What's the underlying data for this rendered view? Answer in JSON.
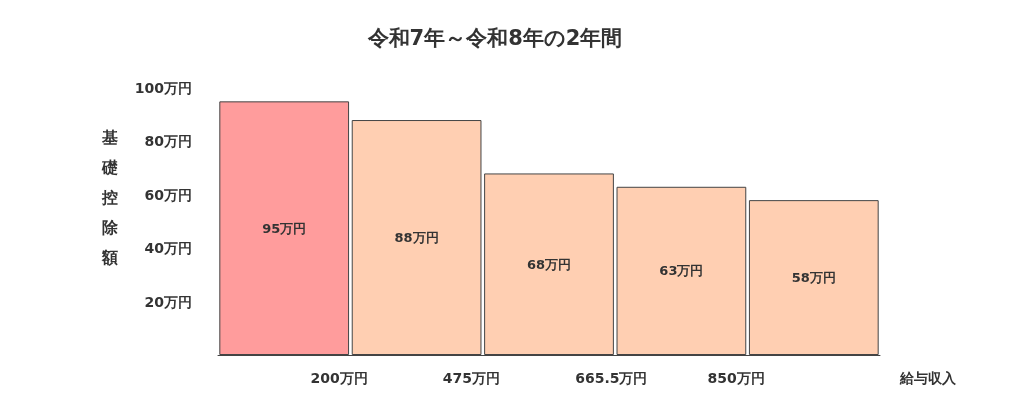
{
  "chart_data": {
    "type": "bar",
    "title": "令和7年～令和8年の2年間",
    "xlabel": "給与収入",
    "ylabel": "基礎控除額",
    "categories": [
      null,
      null,
      null,
      null,
      null
    ],
    "values": [
      95,
      88,
      68,
      63,
      58
    ],
    "colors": [
      "#ff9c9c",
      "#ffcfb2",
      "#ffcfb2",
      "#ffcfb2",
      "#ffcfb2"
    ],
    "value_labels": [
      "95万円",
      "88万円",
      "68万円",
      "63万円",
      "58万円"
    ],
    "ylim": [
      0,
      100
    ],
    "yticks": [
      {
        "value": 20,
        "label": "20万円"
      },
      {
        "value": 40,
        "label": "40万円"
      },
      {
        "value": 60,
        "label": "60万円"
      },
      {
        "value": 80,
        "label": "80万円"
      },
      {
        "value": 100,
        "label": "100万円"
      }
    ],
    "annotations": [
      "200万円",
      "475万円",
      "665.5万円",
      "850万円"
    ],
    "grid": false
  }
}
